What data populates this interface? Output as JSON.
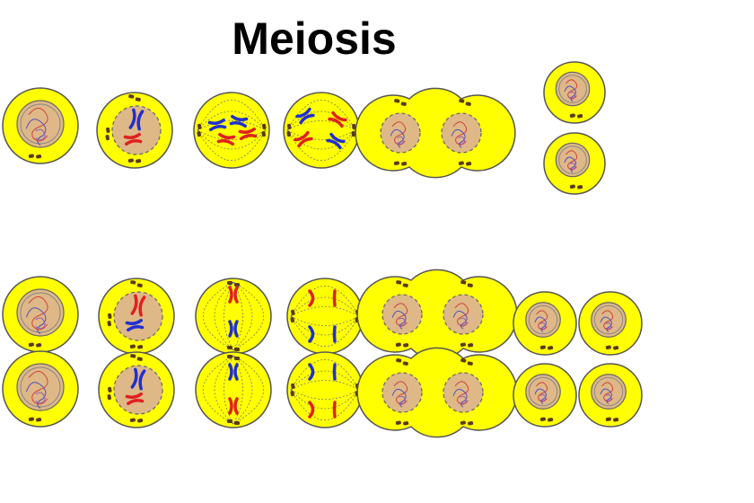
{
  "title": "Meiosis"
}
